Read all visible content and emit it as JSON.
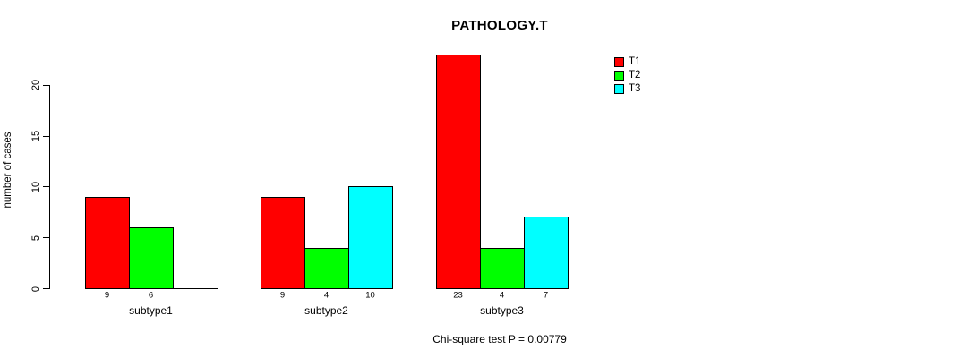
{
  "chart_data": {
    "type": "bar",
    "title": "PATHOLOGY.T",
    "xlabel": "",
    "ylabel": "number of cases",
    "categories": [
      "subtype1",
      "subtype2",
      "subtype3"
    ],
    "series": [
      {
        "name": "T1",
        "color": "#ff0000",
        "values": [
          9,
          9,
          23
        ]
      },
      {
        "name": "T2",
        "color": "#00ff00",
        "values": [
          6,
          4,
          4
        ]
      },
      {
        "name": "T3",
        "color": "#00ffff",
        "values": [
          0,
          10,
          7
        ]
      }
    ],
    "bar_value_labels": [
      [
        "9",
        "6",
        ""
      ],
      [
        "9",
        "4",
        "10"
      ],
      [
        "23",
        "4",
        "7"
      ]
    ],
    "yticks": [
      "0",
      "5",
      "10",
      "15",
      "20"
    ],
    "ylim": [
      0,
      23
    ],
    "grid": false,
    "legend_position": "top-right",
    "annotation": "Chi-square test P = 0.00779"
  }
}
